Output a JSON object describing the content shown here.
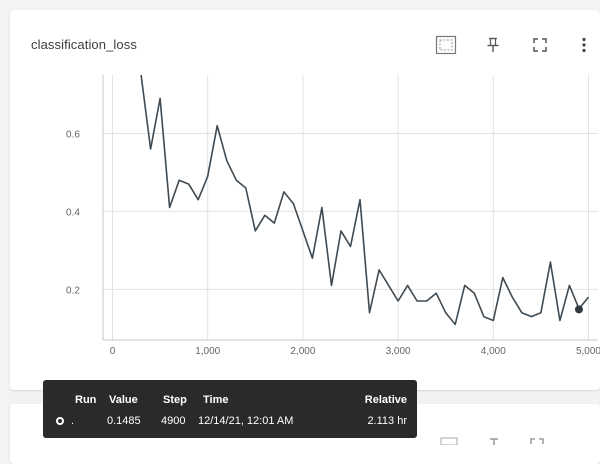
{
  "card": {
    "title": "classification_loss",
    "toolbar": [
      {
        "name": "fit-domain-icon"
      },
      {
        "name": "pin-icon"
      },
      {
        "name": "fullscreen-icon"
      },
      {
        "name": "more-vert-icon"
      }
    ]
  },
  "tooltip": {
    "headers": {
      "run": "Run",
      "value": "Value",
      "step": "Step",
      "time": "Time",
      "relative": "Relative"
    },
    "row": {
      "run": ".",
      "value": "0.1485",
      "step": "4900",
      "time": "12/14/21, 12:01 AM",
      "relative": "2.113 hr"
    }
  },
  "colors": {
    "line": "#3f4a52",
    "grid": "#e2e2e2",
    "tooltip_bg": "#2a2a2a"
  },
  "chart_data": {
    "type": "line",
    "title": "classification_loss",
    "xlabel": "",
    "ylabel": "",
    "xlim": [
      -100,
      5100
    ],
    "ylim": [
      0.07,
      0.75
    ],
    "x_ticks": [
      0,
      1000,
      2000,
      3000,
      4000,
      5000
    ],
    "x_tick_labels": [
      "0",
      "1,000",
      "2,000",
      "3,000",
      "4,000",
      "5,000"
    ],
    "y_ticks": [
      0.2,
      0.4,
      0.6
    ],
    "y_tick_labels": [
      "0.2",
      "0.4",
      "0.6"
    ],
    "grid": true,
    "series": [
      {
        "x": [
          300,
          400,
          500,
          600,
          700,
          800,
          900,
          1000,
          1100,
          1200,
          1300,
          1400,
          1500,
          1600,
          1700,
          1800,
          1900,
          2000,
          2100,
          2200,
          2300,
          2400,
          2500,
          2600,
          2700,
          2800,
          2900,
          3000,
          3100,
          3200,
          3300,
          3400,
          3500,
          3600,
          3700,
          3800,
          3900,
          4000,
          4100,
          4200,
          4300,
          4400,
          4500,
          4600,
          4700,
          4800,
          4900,
          5000
        ],
        "y": [
          0.75,
          0.56,
          0.69,
          0.41,
          0.48,
          0.47,
          0.43,
          0.49,
          0.62,
          0.53,
          0.48,
          0.46,
          0.35,
          0.39,
          0.37,
          0.45,
          0.42,
          0.35,
          0.28,
          0.41,
          0.21,
          0.35,
          0.31,
          0.43,
          0.14,
          0.25,
          0.21,
          0.17,
          0.21,
          0.17,
          0.17,
          0.19,
          0.14,
          0.11,
          0.21,
          0.19,
          0.13,
          0.12,
          0.23,
          0.18,
          0.14,
          0.13,
          0.14,
          0.27,
          0.12,
          0.21,
          0.15,
          0.18
        ]
      }
    ],
    "highlight": {
      "x": 4900,
      "y": 0.1485
    }
  }
}
